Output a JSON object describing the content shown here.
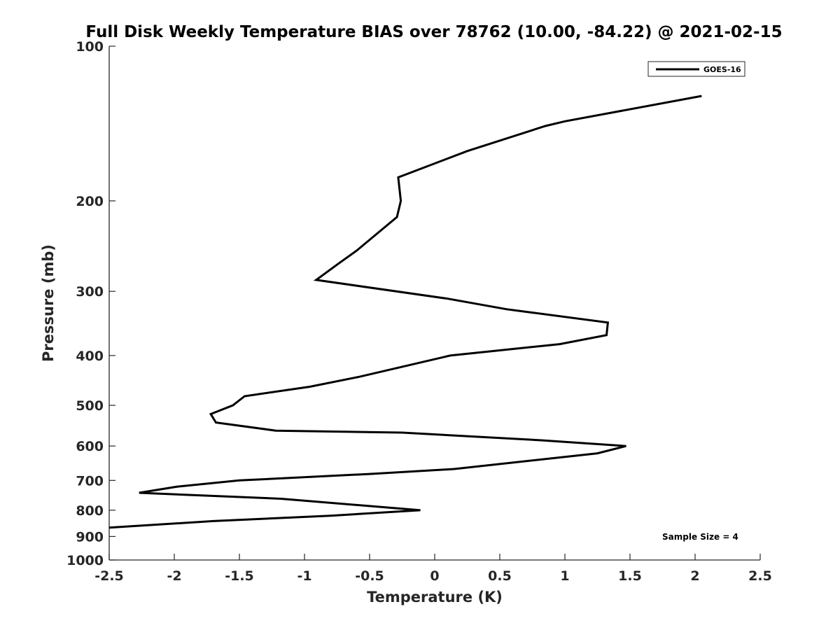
{
  "chart_data": {
    "type": "line",
    "title": "Full Disk Weekly Temperature BIAS over 78762 (10.00, -84.22) @ 2021-02-15",
    "xlabel": "Temperature (K)",
    "ylabel": "Pressure (mb)",
    "xlim": [
      -2.5,
      2.5
    ],
    "ylim": [
      100,
      1000
    ],
    "y_scale": "log",
    "y_reversed": true,
    "x_ticks": [
      {
        "value": -2.5,
        "label": "-2.5"
      },
      {
        "value": -2,
        "label": "-2"
      },
      {
        "value": -1.5,
        "label": "-1.5"
      },
      {
        "value": -1,
        "label": "-1"
      },
      {
        "value": -0.5,
        "label": "-0.5"
      },
      {
        "value": 0,
        "label": "0"
      },
      {
        "value": 0.5,
        "label": "0.5"
      },
      {
        "value": 1,
        "label": "1"
      },
      {
        "value": 1.5,
        "label": "1.5"
      },
      {
        "value": 2,
        "label": "2"
      },
      {
        "value": 2.5,
        "label": "2.5"
      }
    ],
    "y_ticks": [
      {
        "value": 100,
        "label": "100"
      },
      {
        "value": 200,
        "label": "200"
      },
      {
        "value": 300,
        "label": "300"
      },
      {
        "value": 400,
        "label": "400"
      },
      {
        "value": 500,
        "label": "500"
      },
      {
        "value": 600,
        "label": "600"
      },
      {
        "value": 700,
        "label": "700"
      },
      {
        "value": 800,
        "label": "800"
      },
      {
        "value": 900,
        "label": "900"
      },
      {
        "value": 1000,
        "label": "1000"
      }
    ],
    "grid": false,
    "legend_position": "top-right",
    "series": [
      {
        "name": "GOES-16",
        "color": "#000000",
        "points": [
          {
            "t": 2.05,
            "p": 125
          },
          {
            "t": 1.0,
            "p": 140
          },
          {
            "t": 0.85,
            "p": 143
          },
          {
            "t": 0.25,
            "p": 160
          },
          {
            "t": -0.28,
            "p": 180
          },
          {
            "t": -0.27,
            "p": 190
          },
          {
            "t": -0.26,
            "p": 200
          },
          {
            "t": -0.29,
            "p": 215
          },
          {
            "t": -0.6,
            "p": 250
          },
          {
            "t": -0.74,
            "p": 265
          },
          {
            "t": -0.91,
            "p": 285
          },
          {
            "t": 0.1,
            "p": 310
          },
          {
            "t": 0.55,
            "p": 325
          },
          {
            "t": 1.33,
            "p": 345
          },
          {
            "t": 1.32,
            "p": 365
          },
          {
            "t": 0.96,
            "p": 380
          },
          {
            "t": 0.12,
            "p": 400
          },
          {
            "t": -0.58,
            "p": 440
          },
          {
            "t": -0.96,
            "p": 460
          },
          {
            "t": -1.46,
            "p": 480
          },
          {
            "t": -1.55,
            "p": 500
          },
          {
            "t": -1.72,
            "p": 520
          },
          {
            "t": -1.68,
            "p": 540
          },
          {
            "t": -1.22,
            "p": 560
          },
          {
            "t": -0.25,
            "p": 565
          },
          {
            "t": 0.83,
            "p": 585
          },
          {
            "t": 1.47,
            "p": 600
          },
          {
            "t": 1.25,
            "p": 620
          },
          {
            "t": 0.15,
            "p": 665
          },
          {
            "t": -0.5,
            "p": 680
          },
          {
            "t": -1.5,
            "p": 700
          },
          {
            "t": -1.98,
            "p": 720
          },
          {
            "t": -2.27,
            "p": 740
          },
          {
            "t": -1.18,
            "p": 760
          },
          {
            "t": -0.11,
            "p": 800
          },
          {
            "t": -0.8,
            "p": 820
          },
          {
            "t": -1.7,
            "p": 840
          },
          {
            "t": -2.5,
            "p": 865
          }
        ]
      }
    ],
    "annotations": [
      {
        "text": "Sample Size = 4"
      }
    ]
  }
}
